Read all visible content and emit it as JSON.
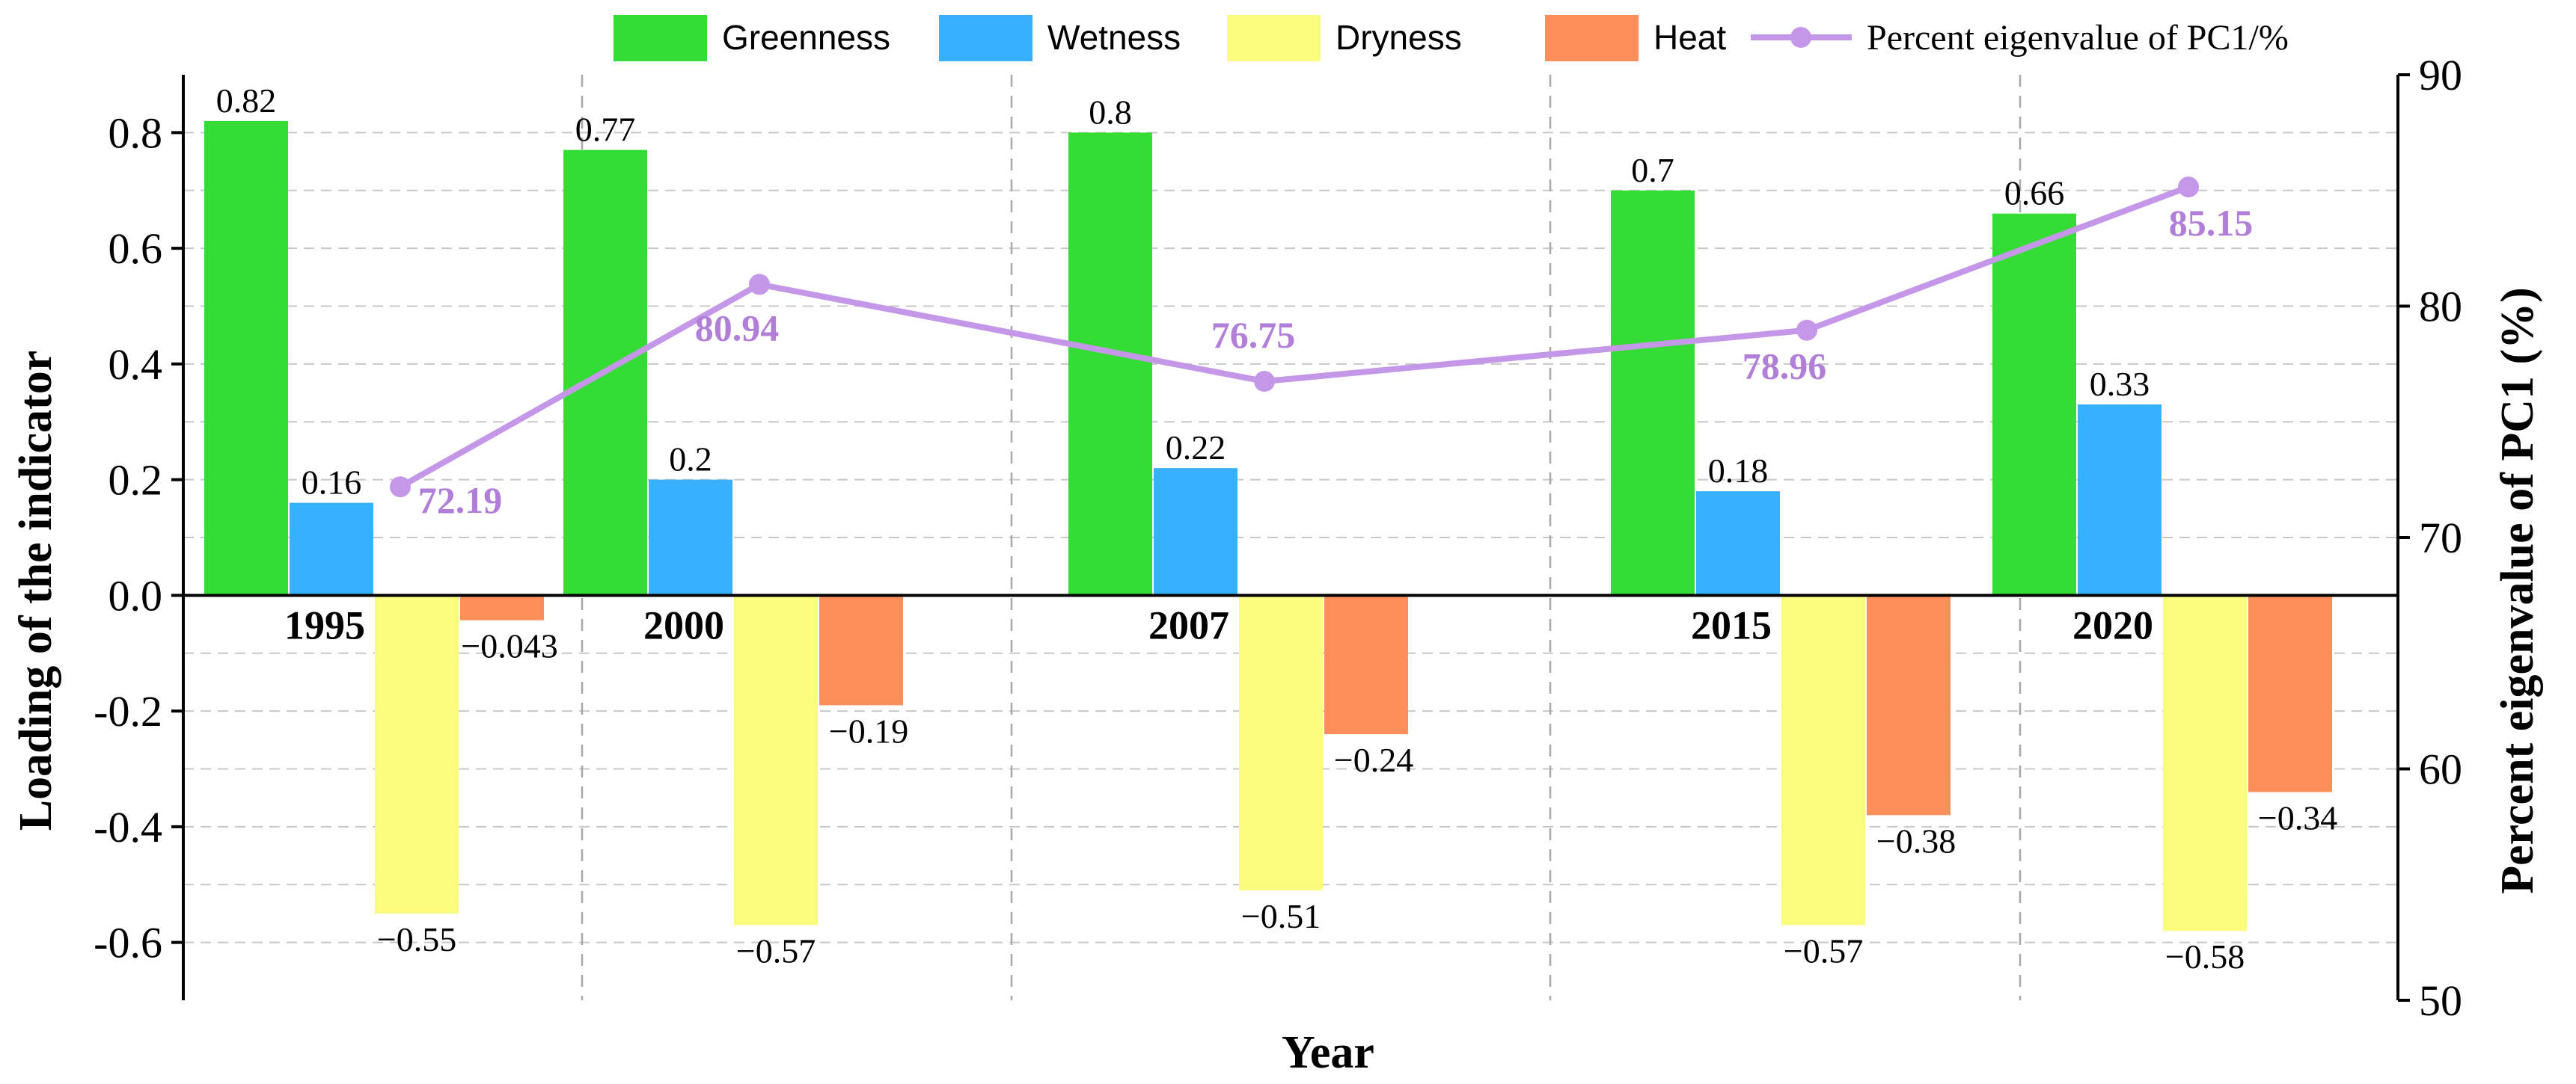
{
  "chart_data": {
    "type": "bar",
    "title": "",
    "xlabel": "Year",
    "ylabel": "Loading of the indicator",
    "y2label": "Percent eigenvalue of PC1 (%)",
    "categories": [
      "1995",
      "2000",
      "2007",
      "2015",
      "2020"
    ],
    "ylim": [
      -0.7,
      0.9
    ],
    "yticks": [
      -0.6,
      -0.4,
      -0.2,
      0.0,
      0.2,
      0.4,
      0.6,
      0.8
    ],
    "ytick_labels": [
      "-0.6",
      "-0.4",
      "-0.2",
      "0.0",
      "0.2",
      "0.4",
      "0.6",
      "0.8"
    ],
    "y2lim": [
      50,
      90
    ],
    "y2ticks": [
      50,
      60,
      70,
      80,
      90
    ],
    "y2tick_labels": [
      "50",
      "60",
      "70",
      "80",
      "90"
    ],
    "grid": true,
    "legend_position": "top",
    "series": [
      {
        "name": "Greenness",
        "color": "#33dd33",
        "values": [
          0.82,
          0.77,
          0.8,
          0.7,
          0.66
        ],
        "labels": [
          "0.82",
          "0.77",
          "0.8",
          "0.7",
          "0.66"
        ]
      },
      {
        "name": "Wetness",
        "color": "#38b0ff",
        "values": [
          0.16,
          0.2,
          0.22,
          0.18,
          0.33
        ],
        "labels": [
          "0.16",
          "0.2",
          "0.22",
          "0.18",
          "0.33"
        ]
      },
      {
        "name": "Dryness",
        "color": "#fbfb7e",
        "values": [
          -0.55,
          -0.57,
          -0.51,
          -0.57,
          -0.58
        ],
        "labels": [
          "−0.55",
          "−0.57",
          "−0.51",
          "−0.57",
          "−0.58"
        ]
      },
      {
        "name": "Heat",
        "color": "#ff8f5a",
        "values": [
          -0.043,
          -0.19,
          -0.24,
          -0.38,
          -0.34
        ],
        "labels": [
          "−0.043",
          "−0.19",
          "−0.24",
          "−0.38",
          "−0.34"
        ]
      }
    ],
    "line_series": {
      "name": "Percent eigenvalue of PC1/%",
      "color": "#c597e8",
      "label_color": "#b27fd8",
      "axis": "right",
      "values": [
        72.19,
        80.94,
        76.75,
        78.96,
        85.15
      ],
      "labels": [
        "72.19",
        "80.94",
        "76.75",
        "78.96",
        "85.15"
      ]
    }
  }
}
